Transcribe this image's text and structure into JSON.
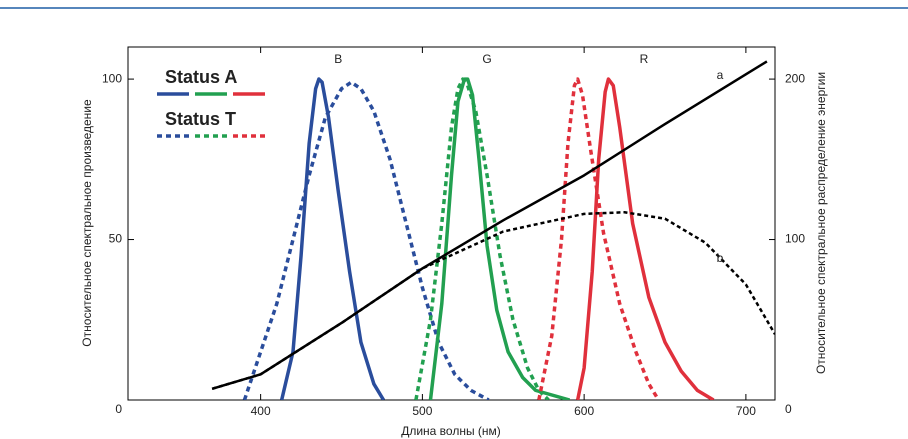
{
  "chart_data": {
    "type": "line",
    "xlabel": "Длина волны (нм)",
    "ylabel": "Относительное спектральное произведение",
    "y2label": "Относительное спектральное распределение энергии",
    "xlim": [
      318,
      718
    ],
    "xticks": [
      400,
      500,
      600,
      700
    ],
    "ylim": [
      0,
      110
    ],
    "yticks": [
      0,
      50,
      100
    ],
    "y2lim": [
      0,
      220
    ],
    "y2ticks": [
      0,
      100,
      200
    ],
    "legend": [
      {
        "label": "Status A",
        "dashed": false
      },
      {
        "label": "Status T",
        "dashed": true
      }
    ],
    "legend_colors": [
      "#2a4d9c",
      "#22a050",
      "#e0303c"
    ],
    "annotations": [
      {
        "text": "B",
        "x": 448,
        "y": 106
      },
      {
        "text": "G",
        "x": 540,
        "y": 106
      },
      {
        "text": "R",
        "x": 637,
        "y": 106
      },
      {
        "text": "a",
        "x": 684,
        "y": 101
      },
      {
        "text": "b",
        "x": 684,
        "y": 44
      }
    ],
    "series": [
      {
        "color": "#2a4d9c",
        "dashed": false,
        "x": [
          413,
          420,
          425,
          430,
          434,
          436,
          438,
          442,
          448,
          455,
          462,
          470,
          476
        ],
        "values": [
          0,
          15,
          45,
          80,
          97,
          100,
          99,
          88,
          65,
          40,
          18,
          5,
          0
        ]
      },
      {
        "color": "#2a4d9c",
        "dashed": true,
        "x": [
          390,
          400,
          410,
          420,
          430,
          440,
          450,
          456,
          462,
          470,
          480,
          490,
          500,
          510,
          520,
          530,
          541
        ],
        "values": [
          0,
          15,
          30,
          50,
          70,
          88,
          97,
          99,
          97,
          90,
          75,
          55,
          35,
          18,
          8,
          3,
          0
        ]
      },
      {
        "color": "#22a050",
        "dashed": false,
        "x": [
          505,
          512,
          518,
          522,
          526,
          528,
          531,
          535,
          540,
          546,
          553,
          562,
          570,
          591
        ],
        "values": [
          0,
          30,
          70,
          93,
          100,
          100,
          95,
          75,
          48,
          28,
          15,
          7,
          3,
          0
        ]
      },
      {
        "color": "#22a050",
        "dashed": true,
        "x": [
          496,
          505,
          512,
          518,
          522,
          525,
          528,
          533,
          540,
          548,
          556,
          565,
          572,
          578
        ],
        "values": [
          0,
          25,
          55,
          85,
          97,
          100,
          98,
          90,
          70,
          45,
          25,
          10,
          3,
          0
        ]
      },
      {
        "color": "#e0303c",
        "dashed": false,
        "x": [
          596,
          600,
          605,
          609,
          613,
          615,
          618,
          622,
          630,
          640,
          650,
          660,
          670,
          680
        ],
        "values": [
          0,
          10,
          40,
          75,
          96,
          100,
          98,
          85,
          55,
          32,
          18,
          9,
          3,
          0
        ]
      },
      {
        "color": "#e0303c",
        "dashed": true,
        "x": [
          572,
          580,
          586,
          590,
          594,
          596,
          599,
          604,
          612,
          622,
          632,
          640,
          646
        ],
        "values": [
          0,
          20,
          50,
          80,
          98,
          100,
          95,
          78,
          52,
          30,
          15,
          5,
          0
        ]
      },
      {
        "color": "#000000",
        "dashed": false,
        "axis": "y2",
        "x": [
          370,
          400,
          450,
          500,
          550,
          600,
          650,
          700,
          713
        ],
        "values": [
          7,
          16,
          48,
          82,
          112,
          140,
          172,
          203,
          211
        ]
      },
      {
        "color": "#000000",
        "dashed": true,
        "axis": "y2",
        "x": [
          370,
          400,
          450,
          500,
          550,
          600,
          625,
          650,
          675,
          700,
          718
        ],
        "values": [
          7,
          16,
          48,
          82,
          105,
          116,
          117,
          113,
          98,
          72,
          41
        ]
      }
    ]
  }
}
